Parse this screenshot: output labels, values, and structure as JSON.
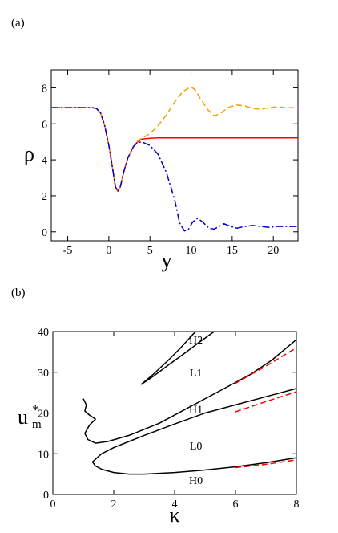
{
  "chart_data": [
    {
      "panel": "(a)",
      "type": "line",
      "xlabel": "y",
      "ylabel": "ρ",
      "xlim": [
        -7,
        23
      ],
      "ylim": [
        -0.5,
        9
      ],
      "xticks": [
        -5,
        0,
        5,
        10,
        15,
        20
      ],
      "yticks": [
        0,
        2,
        4,
        6,
        8
      ],
      "series": [
        {
          "style": "solid",
          "color": "#ff0000",
          "points": [
            [
              -7,
              6.9
            ],
            [
              -2,
              6.9
            ],
            [
              -1.5,
              6.85
            ],
            [
              -1,
              6.6
            ],
            [
              -0.5,
              5.9
            ],
            [
              0,
              4.8
            ],
            [
              0.5,
              3.4
            ],
            [
              0.8,
              2.5
            ],
            [
              1.1,
              2.25
            ],
            [
              1.4,
              2.5
            ],
            [
              1.8,
              3.3
            ],
            [
              2.3,
              4.1
            ],
            [
              3,
              4.75
            ],
            [
              3.5,
              5.0
            ],
            [
              4,
              5.15
            ],
            [
              5,
              5.2
            ],
            [
              6,
              5.22
            ],
            [
              23,
              5.22
            ]
          ]
        },
        {
          "style": "dashed",
          "color": "#f0a000",
          "points": [
            [
              -7,
              6.9
            ],
            [
              -2,
              6.9
            ],
            [
              -1.5,
              6.85
            ],
            [
              -1,
              6.6
            ],
            [
              -0.5,
              5.9
            ],
            [
              0,
              4.8
            ],
            [
              0.5,
              3.4
            ],
            [
              0.8,
              2.5
            ],
            [
              1.1,
              2.25
            ],
            [
              1.4,
              2.5
            ],
            [
              1.8,
              3.3
            ],
            [
              2.3,
              4.1
            ],
            [
              3,
              4.75
            ],
            [
              3.5,
              5.05
            ],
            [
              4,
              5.2
            ],
            [
              5,
              5.45
            ],
            [
              6,
              5.9
            ],
            [
              7,
              6.5
            ],
            [
              8,
              7.2
            ],
            [
              9,
              7.8
            ],
            [
              10,
              8.05
            ],
            [
              10.5,
              7.9
            ],
            [
              11,
              7.5
            ],
            [
              12,
              6.8
            ],
            [
              12.8,
              6.45
            ],
            [
              13.5,
              6.55
            ],
            [
              14.5,
              6.9
            ],
            [
              15.5,
              7.05
            ],
            [
              16.5,
              7.0
            ],
            [
              17.5,
              6.85
            ],
            [
              18.5,
              6.82
            ],
            [
              19.5,
              6.9
            ],
            [
              20.5,
              6.95
            ],
            [
              21.5,
              6.9
            ],
            [
              23,
              6.9
            ]
          ]
        },
        {
          "style": "dash-dot",
          "color": "#0000cc",
          "points": [
            [
              -7,
              6.9
            ],
            [
              -2,
              6.9
            ],
            [
              -1.5,
              6.85
            ],
            [
              -1,
              6.6
            ],
            [
              -0.5,
              5.9
            ],
            [
              0,
              4.8
            ],
            [
              0.5,
              3.4
            ],
            [
              0.8,
              2.5
            ],
            [
              1.1,
              2.25
            ],
            [
              1.4,
              2.5
            ],
            [
              1.8,
              3.3
            ],
            [
              2.3,
              4.1
            ],
            [
              3,
              4.75
            ],
            [
              3.5,
              4.95
            ],
            [
              4,
              5.0
            ],
            [
              5,
              4.8
            ],
            [
              6,
              4.3
            ],
            [
              7,
              3.3
            ],
            [
              8,
              1.8
            ],
            [
              8.6,
              0.5
            ],
            [
              9.2,
              0.05
            ],
            [
              9.7,
              0.15
            ],
            [
              10.2,
              0.55
            ],
            [
              10.8,
              0.75
            ],
            [
              11.4,
              0.55
            ],
            [
              12.2,
              0.2
            ],
            [
              12.8,
              0.15
            ],
            [
              13.4,
              0.3
            ],
            [
              14,
              0.45
            ],
            [
              14.8,
              0.3
            ],
            [
              15.6,
              0.2
            ],
            [
              16.5,
              0.3
            ],
            [
              17.5,
              0.35
            ],
            [
              18.5,
              0.3
            ],
            [
              19.5,
              0.25
            ],
            [
              20.5,
              0.3
            ],
            [
              21.5,
              0.3
            ],
            [
              23,
              0.3
            ]
          ]
        }
      ]
    },
    {
      "panel": "(b)",
      "type": "line",
      "xlabel": "κ",
      "ylabel": "u",
      "ylabel_sup": "*",
      "ylabel_sub": "m",
      "xlim": [
        0,
        8
      ],
      "ylim": [
        0,
        40
      ],
      "xticks": [
        0,
        2,
        4,
        6,
        8
      ],
      "yticks": [
        0,
        10,
        20,
        30,
        40
      ],
      "region_labels": [
        {
          "text": "H2",
          "x": 4.7,
          "y": 38
        },
        {
          "text": "L1",
          "x": 4.7,
          "y": 30
        },
        {
          "text": "H1",
          "x": 4.7,
          "y": 21
        },
        {
          "text": "L0",
          "x": 4.7,
          "y": 12
        },
        {
          "text": "H0",
          "x": 4.7,
          "y": 3.5
        }
      ],
      "series": [
        {
          "style": "solid",
          "color": "#000000",
          "points": [
            [
              2.9,
              27
            ],
            [
              3.3,
              29
            ],
            [
              3.8,
              31.8
            ],
            [
              4.3,
              34.5
            ],
            [
              4.8,
              37.3
            ],
            [
              5.3,
              40
            ]
          ]
        },
        {
          "style": "solid",
          "color": "#000000",
          "points": [
            [
              2.9,
              27
            ],
            [
              3.3,
              29.5
            ],
            [
              3.8,
              33
            ],
            [
              4.2,
              36
            ],
            [
              4.6,
              39.3
            ],
            [
              4.7,
              40
            ]
          ]
        },
        {
          "style": "solid",
          "color": "#000000",
          "points": [
            [
              1.0,
              23.5
            ],
            [
              1.1,
              22
            ],
            [
              1.05,
              20.5
            ],
            [
              1.2,
              19.5
            ],
            [
              1.4,
              18.5
            ],
            [
              1.2,
              17
            ],
            [
              1.05,
              15
            ],
            [
              1.15,
              13.5
            ],
            [
              1.4,
              12.6
            ],
            [
              1.8,
              13
            ],
            [
              2.5,
              14.5
            ],
            [
              3.5,
              17.5
            ],
            [
              4.5,
              21.5
            ],
            [
              5.5,
              25.5
            ],
            [
              6.5,
              29.5
            ],
            [
              7.2,
              33
            ],
            [
              8,
              38
            ]
          ]
        },
        {
          "style": "solid",
          "color": "#000000",
          "points": [
            [
              1.3,
              8
            ],
            [
              1.6,
              10
            ],
            [
              2,
              11.5
            ],
            [
              2.5,
              13
            ],
            [
              3,
              14.5
            ],
            [
              4,
              17.3
            ],
            [
              5,
              20
            ],
            [
              6,
              22
            ],
            [
              7,
              24
            ],
            [
              8,
              26
            ]
          ]
        },
        {
          "style": "solid",
          "color": "#000000",
          "points": [
            [
              1.3,
              8
            ],
            [
              1.4,
              7
            ],
            [
              1.6,
              6.2
            ],
            [
              2,
              5.4
            ],
            [
              2.5,
              5.0
            ],
            [
              3,
              5.0
            ],
            [
              4,
              5.4
            ],
            [
              5,
              6
            ],
            [
              6,
              6.8
            ],
            [
              7,
              7.8
            ],
            [
              8,
              9
            ]
          ]
        },
        {
          "style": "dashed",
          "color": "#ff0000",
          "points": [
            [
              6,
              27.3
            ],
            [
              7,
              31.5
            ],
            [
              8,
              36
            ]
          ]
        },
        {
          "style": "dashed",
          "color": "#ff0000",
          "points": [
            [
              6,
              20.3
            ],
            [
              7,
              22.8
            ],
            [
              8,
              25.2
            ]
          ]
        },
        {
          "style": "dashed",
          "color": "#ff0000",
          "points": [
            [
              6,
              6.6
            ],
            [
              7,
              7.4
            ],
            [
              8,
              8.5
            ]
          ]
        }
      ]
    }
  ]
}
